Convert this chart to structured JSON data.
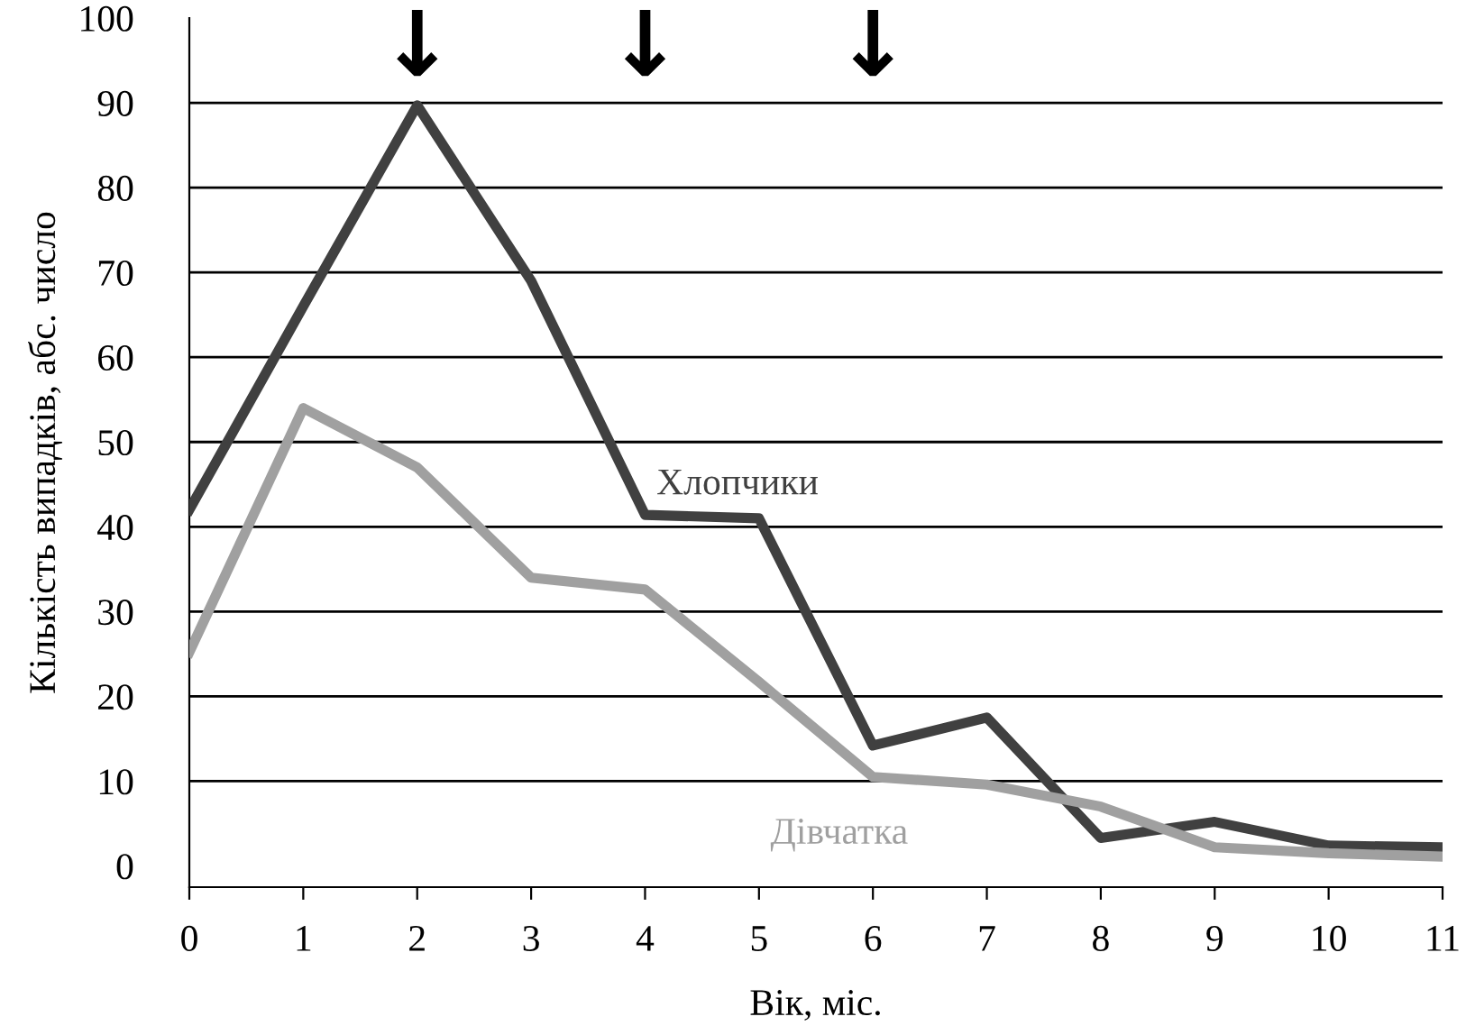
{
  "chart_data": {
    "type": "line",
    "xlabel": "Вік, міс.",
    "ylabel": "Кількість випадків, абс. число",
    "x": [
      0,
      1,
      2,
      3,
      4,
      5,
      6,
      7,
      8,
      9,
      10,
      11
    ],
    "series": [
      {
        "name": "Хлопчики",
        "color": "#404040",
        "values": [
          42,
          66,
          89.7,
          69,
          41.4,
          41,
          14.2,
          17.5,
          3.3,
          5.2,
          2.4,
          2.2
        ]
      },
      {
        "name": "Дівчатка",
        "color": "#a0a0a0",
        "values": [
          25.2,
          54,
          47,
          34,
          32.6,
          21.7,
          10.5,
          9.6,
          7,
          2.2,
          1.5,
          1.1
        ]
      }
    ],
    "annotations": [
      "↓",
      "↓",
      "↓"
    ],
    "xlim": [
      0,
      11
    ],
    "xticks": [
      0,
      1,
      2,
      3,
      4,
      5,
      6,
      7,
      8,
      9,
      10,
      11
    ],
    "ylim": [
      -2.5,
      100
    ],
    "yticks": [
      0,
      10,
      20,
      30,
      40,
      50,
      60,
      70,
      80,
      90,
      100
    ],
    "grid": "y",
    "legend": false,
    "marker": "none",
    "line_style": "solid"
  }
}
